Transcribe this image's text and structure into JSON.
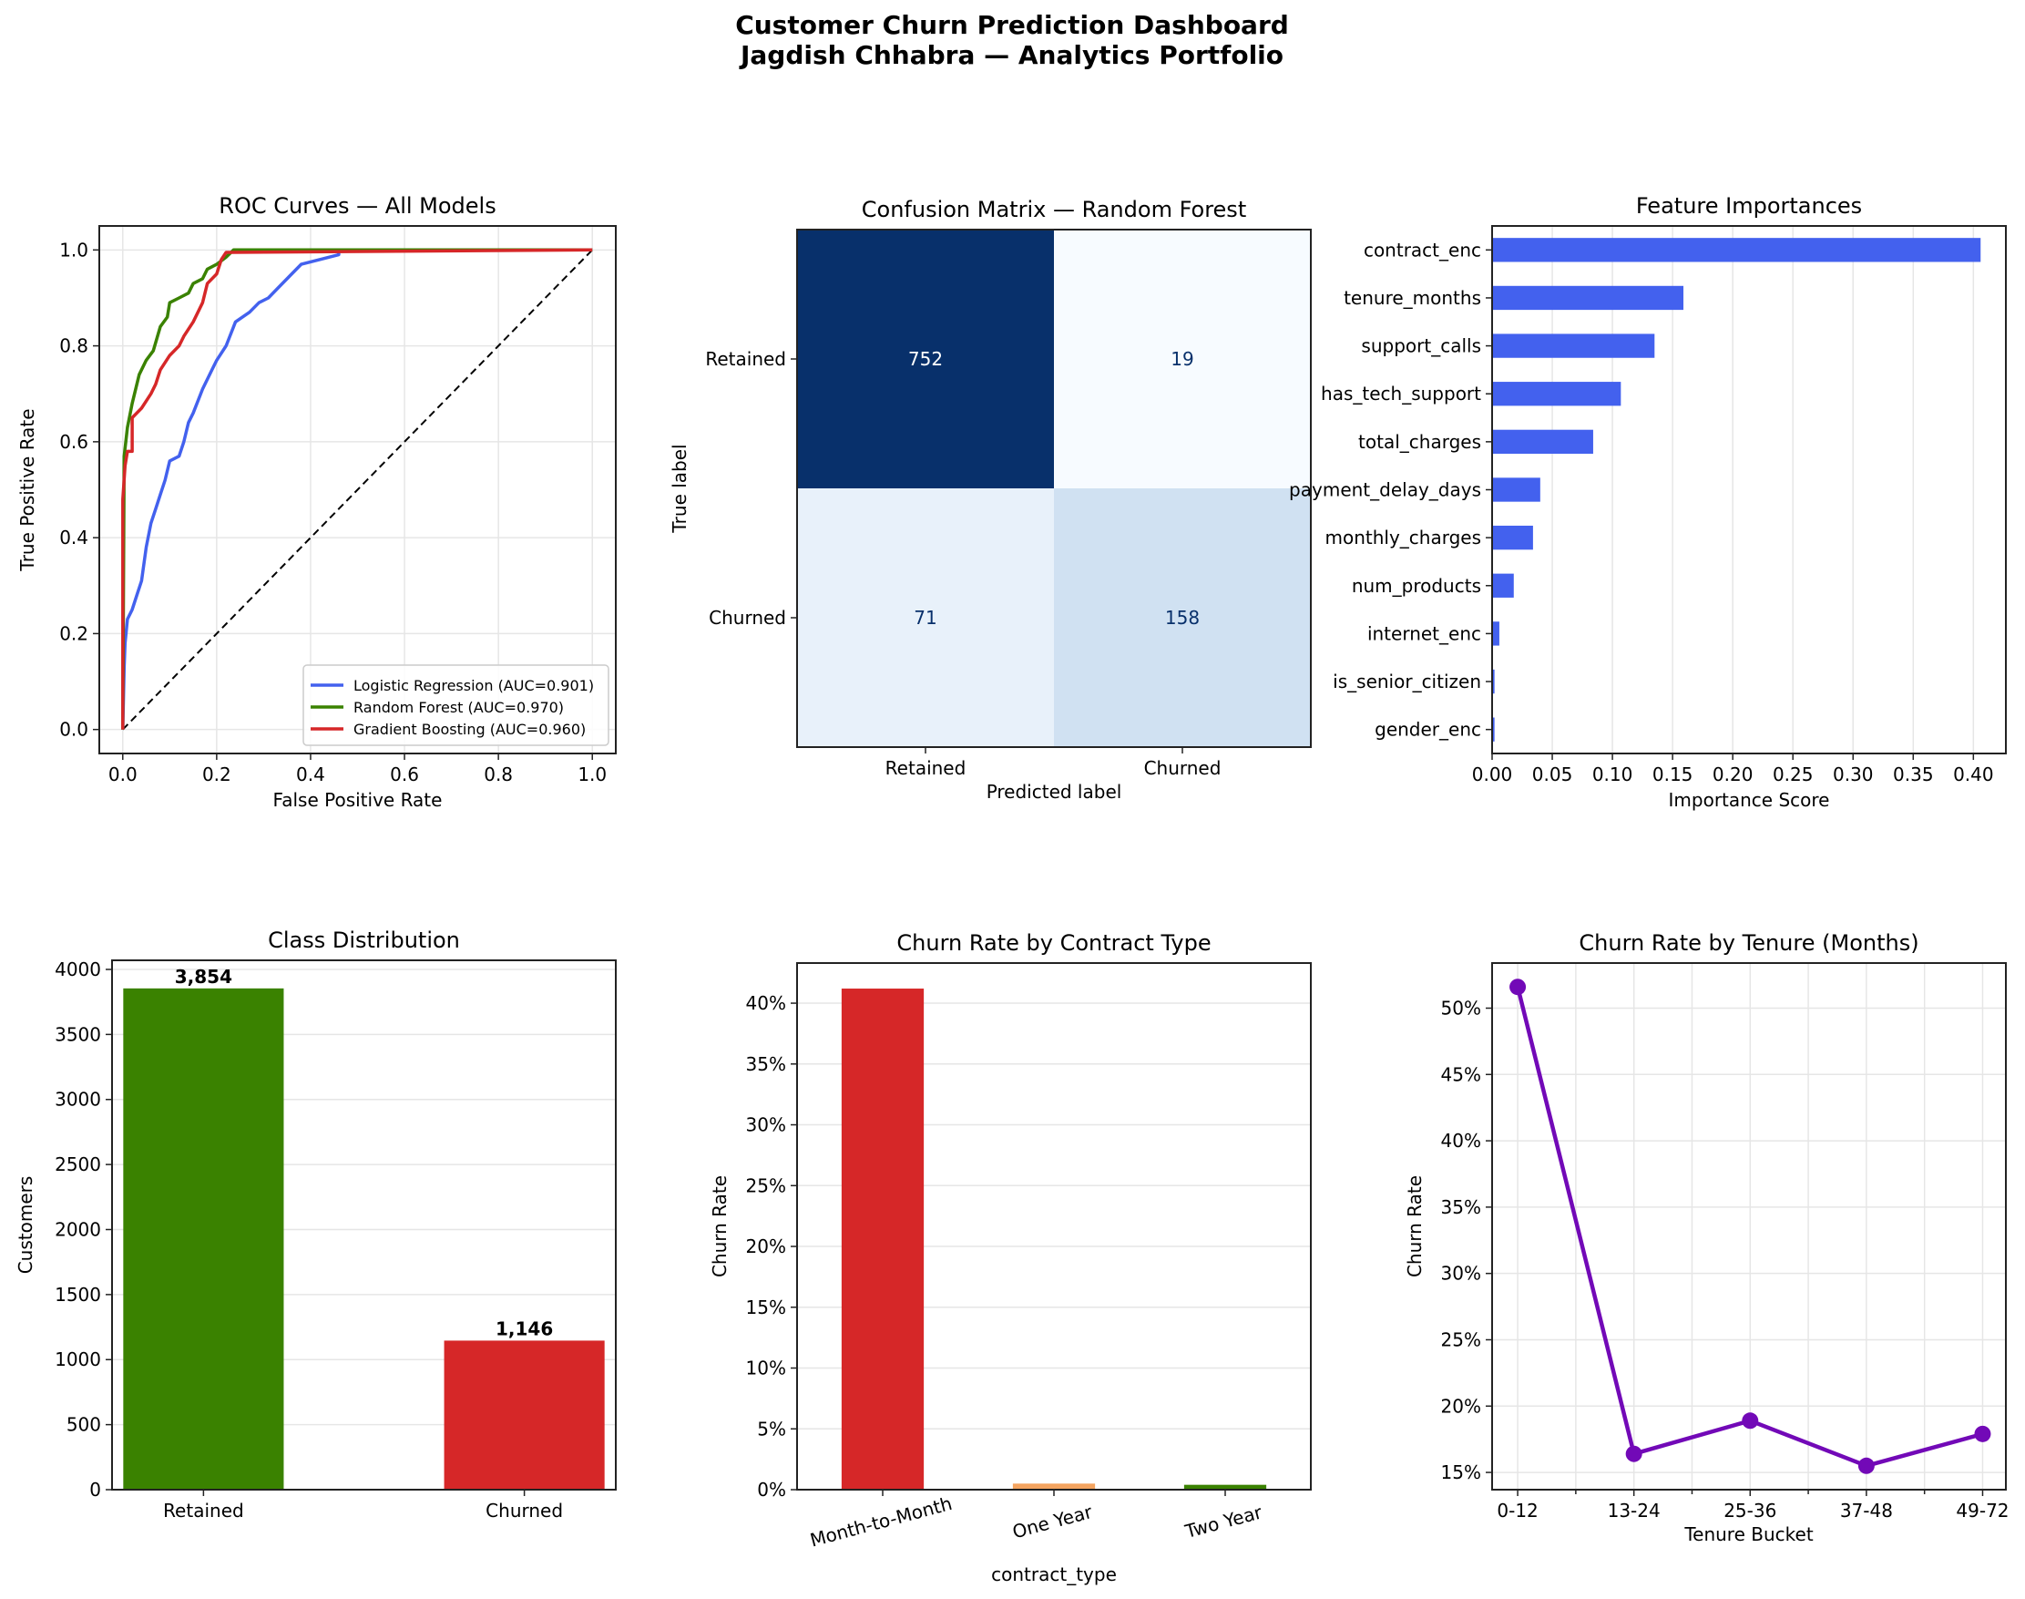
{
  "suptitle": {
    "line1": "Customer Churn Prediction Dashboard",
    "line2": "Jagdish Chhabra — Analytics Portfolio"
  },
  "chart_data": [
    {
      "id": "roc",
      "type": "line",
      "title": "ROC Curves — All Models",
      "xlabel": "False Positive Rate",
      "ylabel": "True Positive Rate",
      "xlim": [
        -0.05,
        1.05
      ],
      "ylim": [
        -0.05,
        1.05
      ],
      "xticks": [
        0.0,
        0.2,
        0.4,
        0.6,
        0.8,
        1.0
      ],
      "yticks": [
        0.0,
        0.2,
        0.4,
        0.6,
        0.8,
        1.0
      ],
      "tick_labels": [
        "0.0",
        "0.2",
        "0.4",
        "0.6",
        "0.8",
        "1.0"
      ],
      "grid": true,
      "legend": "lower-right",
      "series": [
        {
          "name": "Logistic Regression (AUC=0.901)",
          "color": "#4361ee",
          "x": [
            0,
            0.003,
            0.005,
            0.01,
            0.02,
            0.03,
            0.04,
            0.05,
            0.06,
            0.07,
            0.08,
            0.09,
            0.1,
            0.12,
            0.13,
            0.14,
            0.15,
            0.17,
            0.19,
            0.2,
            0.22,
            0.24,
            0.27,
            0.29,
            0.31,
            0.33,
            0.36,
            0.38,
            0.42,
            0.46,
            0.46,
            1.0
          ],
          "y": [
            0,
            0.13,
            0.18,
            0.23,
            0.25,
            0.28,
            0.31,
            0.38,
            0.43,
            0.46,
            0.49,
            0.52,
            0.56,
            0.57,
            0.6,
            0.64,
            0.66,
            0.71,
            0.75,
            0.77,
            0.8,
            0.85,
            0.87,
            0.89,
            0.9,
            0.92,
            0.95,
            0.97,
            0.98,
            0.99,
            1.0,
            1.0
          ]
        },
        {
          "name": "Random Forest (AUC=0.970)",
          "color": "#3a8200",
          "x": [
            0,
            0.003,
            0.01,
            0.02,
            0.035,
            0.05,
            0.065,
            0.08,
            0.095,
            0.1,
            0.12,
            0.14,
            0.15,
            0.17,
            0.18,
            0.2,
            0.22,
            0.236,
            1.0
          ],
          "y": [
            0,
            0.57,
            0.63,
            0.68,
            0.74,
            0.77,
            0.79,
            0.84,
            0.86,
            0.89,
            0.9,
            0.91,
            0.93,
            0.94,
            0.96,
            0.97,
            0.985,
            1.0,
            1.0
          ]
        },
        {
          "name": "Gradient Boosting (AUC=0.960)",
          "color": "#d62728",
          "x": [
            0,
            0.0,
            0.005,
            0.01,
            0.02,
            0.02,
            0.04,
            0.06,
            0.07,
            0.08,
            0.1,
            0.12,
            0.13,
            0.15,
            0.17,
            0.18,
            0.2,
            0.21,
            0.22,
            1.0
          ],
          "y": [
            0,
            0.48,
            0.55,
            0.58,
            0.58,
            0.65,
            0.67,
            0.7,
            0.72,
            0.75,
            0.78,
            0.8,
            0.82,
            0.85,
            0.89,
            0.93,
            0.95,
            0.98,
            0.995,
            1.0
          ]
        }
      ],
      "reference_line": {
        "x": [
          0,
          1
        ],
        "y": [
          0,
          1
        ],
        "color": "#000000",
        "style": "dashed"
      }
    },
    {
      "id": "confusion",
      "type": "heatmap",
      "title": "Confusion Matrix — Random Forest",
      "xlabel": "Predicted label",
      "ylabel": "True label",
      "labels": [
        "Retained",
        "Churned"
      ],
      "values": [
        [
          752,
          19
        ],
        [
          71,
          158
        ]
      ],
      "colormap": "Blues",
      "cell_colors": [
        [
          "#08306b",
          "#f7fbff"
        ],
        [
          "#e8f1fa",
          "#d0e1f2"
        ]
      ],
      "text_colors": [
        [
          "#ffffff",
          "#08306b"
        ],
        [
          "#08306b",
          "#08306b"
        ]
      ]
    },
    {
      "id": "importance",
      "type": "bar",
      "orientation": "horizontal",
      "title": "Feature Importances",
      "xlabel": "Importance Score",
      "categories": [
        "contract_enc",
        "tenure_months",
        "support_calls",
        "has_tech_support",
        "total_charges",
        "payment_delay_days",
        "monthly_charges",
        "num_products",
        "internet_enc",
        "is_senior_citizen",
        "gender_enc"
      ],
      "values": [
        0.406,
        0.159,
        0.135,
        0.107,
        0.084,
        0.04,
        0.034,
        0.018,
        0.006,
        0.002,
        0.002
      ],
      "xlim": [
        0,
        0.427
      ],
      "xticks": [
        0.0,
        0.05,
        0.1,
        0.15,
        0.2,
        0.25,
        0.3,
        0.35,
        0.4
      ],
      "xtick_labels": [
        "0.00",
        "0.05",
        "0.10",
        "0.15",
        "0.20",
        "0.25",
        "0.30",
        "0.35",
        "0.40"
      ],
      "grid": "x",
      "color": "#4361ee"
    },
    {
      "id": "class_dist",
      "type": "bar",
      "title": "Class Distribution",
      "ylabel": "Customers",
      "categories": [
        "Retained",
        "Churned"
      ],
      "values": [
        3854,
        1146
      ],
      "data_labels": [
        "3,854",
        "1,146"
      ],
      "colors": [
        "#3a8200",
        "#d62728"
      ],
      "xlim": [
        -0.285,
        1.285
      ],
      "ylim": [
        0,
        4070
      ],
      "yticks": [
        0,
        500,
        1000,
        1500,
        2000,
        2500,
        3000,
        3500,
        4000
      ],
      "ytick_labels": [
        "0",
        "500",
        "1000",
        "1500",
        "2000",
        "2500",
        "3000",
        "3500",
        "4000"
      ],
      "grid": "y"
    },
    {
      "id": "contract",
      "type": "bar",
      "title": "Churn Rate by Contract Type",
      "xlabel": "contract_type",
      "ylabel": "Churn Rate",
      "categories": [
        "Month-to-Month",
        "One Year",
        "Two Year"
      ],
      "values": [
        41.2,
        0.5,
        0.4
      ],
      "unit": "%",
      "colors": [
        "#d62728",
        "#f4a460",
        "#3a8200"
      ],
      "xlim": [
        -0.5,
        2.5
      ],
      "ylim": [
        0,
        43.3
      ],
      "yticks": [
        0,
        5,
        10,
        15,
        20,
        25,
        30,
        35,
        40
      ],
      "ytick_labels": [
        "0%",
        "5%",
        "10%",
        "15%",
        "20%",
        "25%",
        "30%",
        "35%",
        "40%"
      ],
      "grid": "y"
    },
    {
      "id": "tenure",
      "type": "line",
      "title": "Churn Rate by Tenure (Months)",
      "xlabel": "Tenure Bucket",
      "ylabel": "Churn Rate",
      "categories": [
        "0-12",
        "13-24",
        "25-36",
        "37-48",
        "49-72"
      ],
      "values": [
        51.6,
        16.4,
        18.9,
        15.5,
        17.9
      ],
      "unit": "%",
      "color": "#7209b7",
      "xlim": [
        -0.22,
        4.2
      ],
      "ylim": [
        13.7,
        53.4
      ],
      "yticks": [
        15,
        20,
        25,
        30,
        35,
        40,
        45,
        50
      ],
      "ytick_labels": [
        "15%",
        "20%",
        "25%",
        "30%",
        "35%",
        "40%",
        "45%",
        "50%"
      ],
      "grid": true
    }
  ]
}
